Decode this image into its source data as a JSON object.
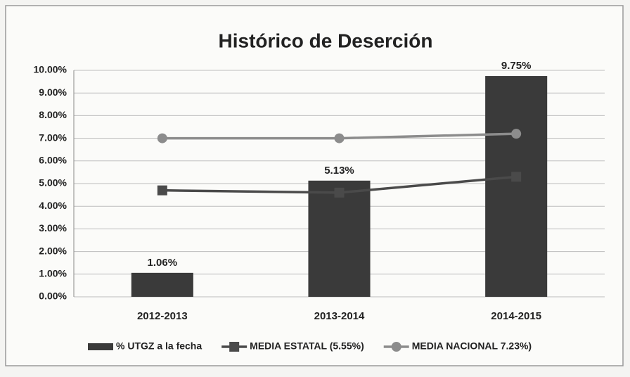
{
  "chart_data": {
    "type": "bar",
    "title": "Histórico de Deserción",
    "categories": [
      "2012-2013",
      "2013-2014",
      "2014-2015"
    ],
    "series": [
      {
        "name": "% UTGZ a la fecha",
        "type": "bar",
        "color": "#3a3a3a",
        "values": [
          1.06,
          5.13,
          9.75
        ],
        "value_labels": [
          "1.06%",
          "5.13%",
          "9.75%"
        ]
      },
      {
        "name": "MEDIA ESTATAL (5.55%)",
        "type": "line",
        "marker": "square",
        "color": "#4a4a4a",
        "values": [
          4.7,
          4.6,
          5.3
        ]
      },
      {
        "name": "MEDIA NACIONAL 7.23%)",
        "type": "line",
        "marker": "circle",
        "color": "#8c8c8c",
        "values": [
          7.0,
          7.0,
          7.2
        ]
      }
    ],
    "ylim": [
      0,
      10
    ],
    "yticks": [
      {
        "value": 0,
        "label": "0.00%"
      },
      {
        "value": 1,
        "label": "1.00%"
      },
      {
        "value": 2,
        "label": "2.00%"
      },
      {
        "value": 3,
        "label": "3.00%"
      },
      {
        "value": 4,
        "label": "4.00%"
      },
      {
        "value": 5,
        "label": "5.00%"
      },
      {
        "value": 6,
        "label": "6.00%"
      },
      {
        "value": 7,
        "label": "7.00%"
      },
      {
        "value": 8,
        "label": "8.00%"
      },
      {
        "value": 9,
        "label": "9.00%"
      },
      {
        "value": 10,
        "label": "10.00%"
      }
    ],
    "grid": true,
    "legend": "bottom"
  }
}
